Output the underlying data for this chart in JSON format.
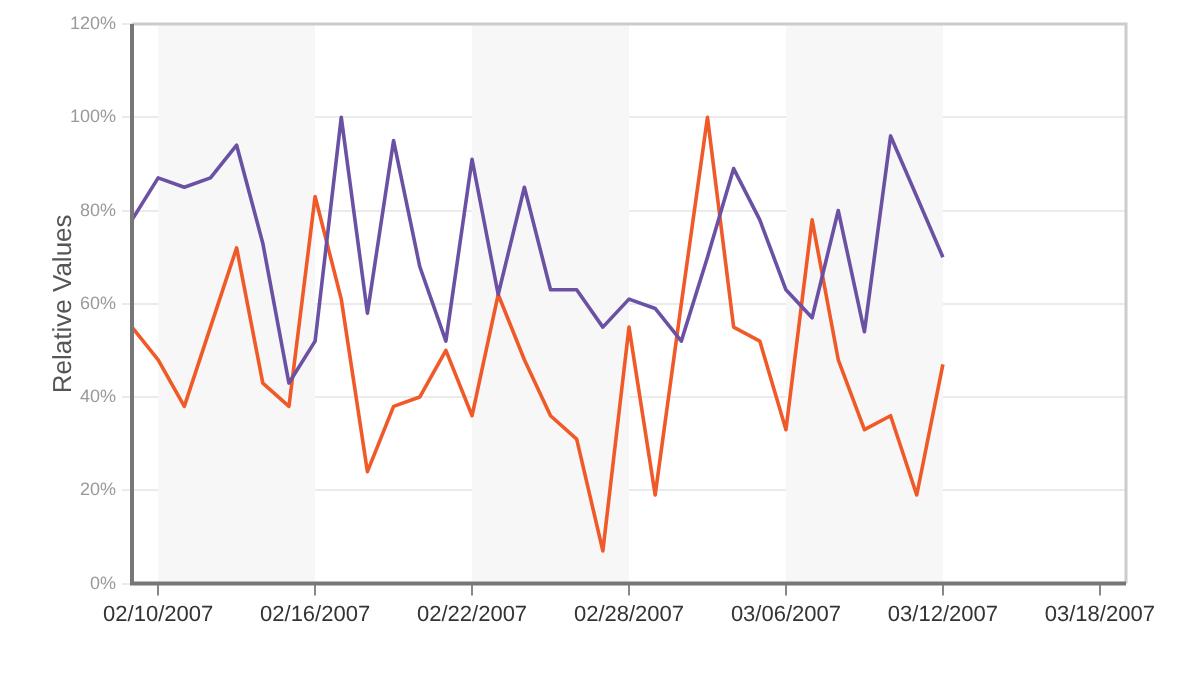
{
  "chart_data": {
    "type": "line",
    "ylabel": "Relative Values",
    "x": [
      "2007-02-09",
      "2007-02-10",
      "2007-02-11",
      "2007-02-12",
      "2007-02-13",
      "2007-02-14",
      "2007-02-15",
      "2007-02-16",
      "2007-02-17",
      "2007-02-18",
      "2007-02-19",
      "2007-02-20",
      "2007-02-21",
      "2007-02-22",
      "2007-02-23",
      "2007-02-24",
      "2007-02-25",
      "2007-02-26",
      "2007-02-27",
      "2007-02-28",
      "2007-03-01",
      "2007-03-02",
      "2007-03-03",
      "2007-03-04",
      "2007-03-05",
      "2007-03-06",
      "2007-03-07",
      "2007-03-08",
      "2007-03-09",
      "2007-03-10",
      "2007-03-11",
      "2007-03-12"
    ],
    "series": [
      {
        "color": "#6a51a3",
        "values": [
          78,
          87,
          85,
          87,
          94,
          73,
          43,
          52,
          100,
          58,
          95,
          68,
          52,
          91,
          62,
          85,
          63,
          63,
          55,
          61,
          59,
          52,
          70,
          89,
          78,
          63,
          57,
          80,
          54,
          96,
          83,
          70
        ]
      },
      {
        "color": "#f05a28",
        "values": [
          55,
          48,
          38,
          55,
          72,
          43,
          38,
          83,
          61,
          24,
          38,
          40,
          50,
          36,
          62,
          48,
          36,
          31,
          7,
          55,
          19,
          60,
          100,
          55,
          52,
          33,
          78,
          48,
          33,
          36,
          19,
          47
        ]
      }
    ],
    "xlim": [
      "2007-02-09",
      "2007-03-19"
    ],
    "xticks": [
      {
        "value": "2007-02-10",
        "label": "02/10/2007"
      },
      {
        "value": "2007-02-16",
        "label": "02/16/2007"
      },
      {
        "value": "2007-02-22",
        "label": "02/22/2007"
      },
      {
        "value": "2007-02-28",
        "label": "02/28/2007"
      },
      {
        "value": "2007-03-06",
        "label": "03/06/2007"
      },
      {
        "value": "2007-03-12",
        "label": "03/12/2007"
      },
      {
        "value": "2007-03-18",
        "label": "03/18/2007"
      }
    ],
    "ylim": [
      0,
      120
    ],
    "yticks": [
      {
        "value": 0,
        "label": "0%"
      },
      {
        "value": 20,
        "label": "20%"
      },
      {
        "value": 40,
        "label": "40%"
      },
      {
        "value": 60,
        "label": "60%"
      },
      {
        "value": 80,
        "label": "80%"
      },
      {
        "value": 100,
        "label": "100%"
      },
      {
        "value": 120,
        "label": "120%"
      }
    ],
    "bands": [
      {
        "axis": "x",
        "from": "2007-02-10",
        "to": "2007-02-16",
        "color": "#f7f7f7"
      },
      {
        "axis": "x",
        "from": "2007-02-22",
        "to": "2007-02-28",
        "color": "#f7f7f7"
      },
      {
        "axis": "x",
        "from": "2007-03-06",
        "to": "2007-03-12",
        "color": "#f7f7f7"
      }
    ],
    "grid": "y",
    "legend": false,
    "marker": "none",
    "line_style": "solid"
  }
}
